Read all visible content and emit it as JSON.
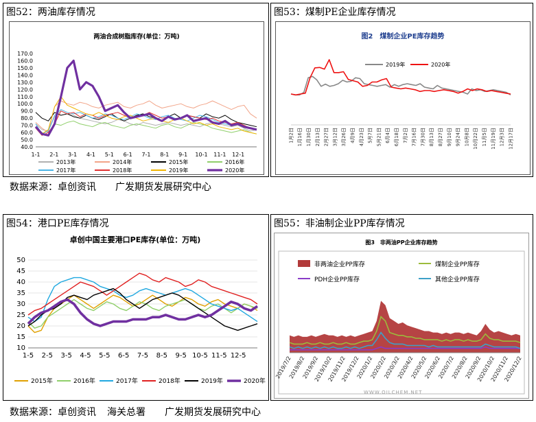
{
  "panels": {
    "p52": {
      "title": "图52：两油库存情况"
    },
    "p53": {
      "title": "图53：煤制PE企业库存情况"
    },
    "p54": {
      "title": "图54：港口PE库存情况"
    },
    "p55": {
      "title": "图55：非油制企业PP库存情况"
    }
  },
  "sources": {
    "row1": [
      "数据来源：卓创资讯",
      "广发期货发展研究中心"
    ],
    "row2": [
      "数据来源：卓创资讯",
      "海关总署",
      "广发期货发展研究中心"
    ]
  },
  "watermark": "WWW.OILCHEM.NET",
  "chart_data": [
    {
      "id": "c52",
      "type": "line",
      "title": "两油合成树脂库存(单位：万吨)",
      "x_ticks": [
        "1-1",
        "2-1",
        "3-1",
        "4-1",
        "5-1",
        "6-1",
        "7-1",
        "8-1",
        "9-1",
        "10-1",
        "11-1",
        "12-1"
      ],
      "ylim": [
        40,
        170
      ],
      "y_ticks": [
        "40.0",
        "50.0",
        "60.0",
        "70.0",
        "80.0",
        "90.0",
        "100.0",
        "110.0",
        "120.0",
        "130.0",
        "140.0",
        "150.0",
        "160.0",
        "170.0"
      ],
      "legend": "bottom",
      "series": [
        {
          "name": "2013年",
          "color": "#b0b0b0",
          "values": [
            72,
            64,
            62,
            82,
            90,
            86,
            84,
            80,
            78,
            76,
            74,
            72,
            74,
            78,
            76,
            72,
            70,
            74,
            72,
            70,
            72,
            74,
            72,
            70,
            72,
            70,
            68,
            72,
            74,
            72,
            70,
            68,
            70,
            66,
            62,
            64
          ]
        },
        {
          "name": "2014年",
          "color": "#f2a488",
          "values": [
            74,
            66,
            60,
            96,
            104,
            100,
            98,
            102,
            100,
            96,
            94,
            98,
            100,
            102,
            96,
            94,
            98,
            100,
            104,
            98,
            94,
            96,
            98,
            100,
            96,
            94,
            98,
            100,
            104,
            100,
            96,
            92,
            96,
            98,
            86,
            80
          ]
        },
        {
          "name": "2015年",
          "color": "#000000",
          "values": [
            88,
            80,
            76,
            88,
            84,
            86,
            82,
            80,
            84,
            80,
            78,
            82,
            86,
            80,
            76,
            80,
            84,
            86,
            82,
            80,
            76,
            82,
            86,
            80,
            84,
            82,
            80,
            86,
            82,
            80,
            84,
            78,
            74,
            72,
            70,
            68
          ]
        },
        {
          "name": "2016年",
          "color": "#8fcf6a",
          "values": [
            68,
            60,
            55,
            72,
            70,
            74,
            76,
            72,
            70,
            68,
            72,
            74,
            70,
            68,
            66,
            70,
            72,
            70,
            68,
            66,
            70,
            72,
            68,
            66,
            70,
            74,
            72,
            70,
            66,
            64,
            62,
            60,
            62,
            64,
            60,
            58
          ]
        },
        {
          "name": "2017年",
          "color": "#4ab4e6",
          "values": [
            72,
            58,
            62,
            84,
            92,
            88,
            86,
            88,
            84,
            80,
            82,
            86,
            84,
            80,
            78,
            82,
            86,
            84,
            80,
            78,
            82,
            84,
            80,
            78,
            76,
            80,
            84,
            82,
            78,
            74,
            72,
            70,
            72,
            68,
            66,
            64
          ]
        },
        {
          "name": "2018年",
          "color": "#e03030",
          "values": [
            66,
            56,
            60,
            72,
            90,
            86,
            88,
            82,
            86,
            84,
            80,
            84,
            86,
            88,
            84,
            80,
            82,
            84,
            88,
            84,
            80,
            82,
            78,
            80,
            84,
            82,
            80,
            78,
            80,
            76,
            74,
            72,
            74,
            70,
            66,
            64
          ]
        },
        {
          "name": "2019年",
          "color": "#f0b400",
          "values": [
            66,
            58,
            64,
            96,
            110,
            98,
            94,
            90,
            86,
            84,
            88,
            84,
            80,
            78,
            82,
            84,
            80,
            76,
            78,
            80,
            76,
            74,
            78,
            80,
            76,
            72,
            74,
            70,
            72,
            68,
            66,
            64,
            66,
            62,
            60,
            58
          ]
        },
        {
          "name": "2020年",
          "color": "#7030a0",
          "bold": true,
          "values": [
            68,
            58,
            56,
            72,
            110,
            150,
            160,
            120,
            130,
            125,
            110,
            90,
            94,
            98,
            88,
            80,
            82,
            84,
            86,
            80,
            76,
            82,
            78,
            80,
            84,
            76,
            78,
            80,
            74,
            72,
            76,
            70,
            72,
            68,
            66,
            64
          ]
        }
      ]
    },
    {
      "id": "c53",
      "type": "line",
      "title": "图2　煤制企业PE库存趋势",
      "x_ticks": [
        "1月2日",
        "1月16日",
        "1月30日",
        "2月13日",
        "2月27日",
        "3月12日",
        "3月26日",
        "4月9日",
        "4月23日",
        "5月7日",
        "5月21日",
        "6月4日",
        "6月18日",
        "7月2日",
        "7月16日",
        "7月30日",
        "8月13日",
        "8月27日",
        "9月10日",
        "9月24日",
        "10月8日",
        "10月22日",
        "11月5日",
        "11月19日",
        "12月3日",
        "12月17日"
      ],
      "ylim": [
        0,
        160
      ],
      "legend": "top",
      "series": [
        {
          "name": "2019年",
          "color": "#888888",
          "values": [
            72,
            70,
            70,
            76,
            110,
            113,
            105,
            90,
            95,
            90,
            92,
            96,
            104,
            100,
            102,
            110,
            108,
            96,
            94,
            92,
            90,
            92,
            94,
            88,
            94,
            90,
            94,
            96,
            94,
            92,
            96,
            88,
            86,
            84,
            92,
            86,
            84,
            82,
            80,
            78,
            76,
            72,
            84,
            80,
            82,
            78,
            80,
            82,
            80,
            78,
            76,
            70
          ]
        },
        {
          "name": "2020年",
          "color": "#ee1111",
          "values": [
            72,
            70,
            72,
            74,
            110,
            133,
            134,
            130,
            152,
            122,
            122,
            124,
            106,
            103,
            100,
            90,
            92,
            100,
            100,
            105,
            108,
            88,
            86,
            84,
            86,
            84,
            82,
            78,
            80,
            80,
            78,
            80,
            82,
            80,
            78,
            74,
            78,
            84,
            80,
            84,
            82,
            78,
            80,
            78,
            76,
            74,
            72
          ]
        }
      ]
    },
    {
      "id": "c54",
      "type": "line",
      "title": "卓创中国主要港口PE库存(单位：万吨)",
      "x_ticks": [
        "1-5",
        "2-5",
        "3-5",
        "4-5",
        "5-5",
        "6-5",
        "7-5",
        "8-5",
        "9-5",
        "10-5",
        "11-5",
        "12-5"
      ],
      "ylim": [
        10,
        50
      ],
      "y_ticks": [
        "10",
        "15",
        "20",
        "25",
        "30",
        "35",
        "40",
        "45",
        "50"
      ],
      "legend": "bottom",
      "series": [
        {
          "name": "2015年",
          "color": "#e0a000",
          "values": [
            20,
            17,
            18,
            24,
            28,
            30,
            32,
            34,
            32,
            30,
            28,
            30,
            32,
            34,
            33,
            31,
            29,
            30,
            32,
            34,
            32,
            30,
            29,
            31,
            33,
            32,
            30,
            29,
            31,
            32,
            30,
            29,
            28,
            30,
            29,
            27
          ]
        },
        {
          "name": "2016年",
          "color": "#8fcf6a",
          "values": [
            22,
            19,
            20,
            24,
            26,
            28,
            30,
            32,
            30,
            28,
            27,
            29,
            31,
            30,
            28,
            27,
            29,
            31,
            30,
            28,
            27,
            29,
            30,
            31,
            32,
            30,
            28,
            27,
            29,
            30,
            28,
            26,
            28,
            30,
            29,
            28
          ]
        },
        {
          "name": "2017年",
          "color": "#1fa8e0",
          "values": [
            24,
            22,
            24,
            32,
            38,
            40,
            41,
            42,
            42,
            41,
            40,
            38,
            37,
            36,
            34,
            33,
            34,
            36,
            37,
            36,
            35,
            34,
            35,
            36,
            37,
            36,
            34,
            32,
            30,
            29,
            28,
            27,
            28,
            26,
            24,
            22
          ]
        },
        {
          "name": "2018年",
          "color": "#e02020",
          "values": [
            25,
            27,
            28,
            30,
            32,
            34,
            36,
            38,
            40,
            39,
            38,
            36,
            34,
            36,
            38,
            40,
            42,
            44,
            43,
            41,
            40,
            42,
            41,
            40,
            38,
            39,
            41,
            40,
            38,
            37,
            36,
            35,
            34,
            33,
            32,
            30
          ]
        },
        {
          "name": "2019年",
          "color": "#000000",
          "values": [
            20,
            22,
            25,
            27,
            28,
            30,
            33,
            34,
            33,
            32,
            34,
            35,
            36,
            37,
            35,
            32,
            30,
            28,
            30,
            32,
            33,
            34,
            35,
            34,
            32,
            30,
            28,
            26,
            24,
            22,
            20,
            19,
            18,
            19,
            20,
            21
          ]
        },
        {
          "name": "2020年",
          "color": "#7030a0",
          "bold": true,
          "values": [
            21,
            24,
            26,
            27,
            29,
            31,
            32,
            30,
            26,
            23,
            21,
            20,
            21,
            22,
            22,
            22,
            23,
            23,
            23,
            24,
            24,
            25,
            24,
            23,
            23,
            24,
            25,
            24,
            25,
            27,
            29,
            31,
            30,
            28,
            27,
            29
          ]
        }
      ]
    },
    {
      "id": "c55",
      "type": "area",
      "title": "图3　非两油PP企业库存趋势",
      "x_ticks": [
        "2019/7/2",
        "2019/8/2",
        "2019/9/2",
        "2019/10/2",
        "2019/11/2",
        "2019/12/2",
        "2020/1/2",
        "2020/2/2",
        "2020/3/2",
        "2020/4/2",
        "2020/5/2",
        "2020/6/2",
        "2020/7/2",
        "2020/8/2",
        "2020/9/2",
        "2020/10/2",
        "2020/11/2",
        "2020/12/2"
      ],
      "ylim": [
        0,
        40
      ],
      "legend": "top",
      "series": [
        {
          "name": "非两油企业PP库存",
          "color": "#b23a3a",
          "values": [
            12,
            11,
            12,
            11,
            11,
            12,
            11,
            12,
            13,
            12,
            12,
            11,
            12,
            11,
            12,
            11,
            12,
            13,
            14,
            15,
            22,
            36,
            33,
            24,
            22,
            20,
            21,
            19,
            18,
            17,
            16,
            15,
            15,
            14,
            14,
            13,
            14,
            13,
            14,
            14,
            13,
            14,
            13,
            12,
            15,
            20,
            16,
            14,
            15,
            14,
            13,
            12,
            13,
            12
          ]
        },
        {
          "name": "煤制企业PP库存",
          "color": "#9cbb3c",
          "values": [
            7,
            6,
            6,
            6,
            7,
            6,
            6,
            7,
            6,
            6,
            7,
            6,
            6,
            7,
            6,
            6,
            7,
            8,
            8,
            9,
            15,
            25,
            22,
            14,
            13,
            12,
            12,
            11,
            11,
            10,
            10,
            9,
            9,
            9,
            9,
            8,
            9,
            8,
            9,
            9,
            8,
            9,
            8,
            8,
            9,
            13,
            10,
            9,
            9,
            8,
            8,
            8,
            8,
            7
          ]
        },
        {
          "name": "PDH企业PP库存",
          "color": "#8a3cc8",
          "values": [
            2,
            2,
            2,
            2,
            2,
            2,
            2,
            2,
            2,
            2,
            2,
            2,
            2,
            2,
            2,
            2,
            2,
            2,
            2,
            2,
            3,
            4,
            3,
            3,
            3,
            3,
            3,
            3,
            3,
            3,
            3,
            3,
            3,
            3,
            3,
            3,
            3,
            3,
            3,
            3,
            3,
            3,
            3,
            3,
            3,
            4,
            3,
            3,
            3,
            3,
            3,
            3,
            3,
            3
          ]
        },
        {
          "name": "其他企业PP库存",
          "color": "#3da0c8",
          "values": [
            4,
            3,
            4,
            3,
            4,
            3,
            4,
            3,
            4,
            3,
            4,
            3,
            3,
            4,
            3,
            4,
            3,
            4,
            5,
            5,
            9,
            14,
            10,
            7,
            6,
            6,
            6,
            5,
            5,
            5,
            5,
            5,
            4,
            5,
            4,
            4,
            4,
            4,
            4,
            4,
            4,
            4,
            4,
            4,
            4,
            6,
            5,
            4,
            4,
            4,
            4,
            4,
            4,
            3
          ]
        }
      ]
    }
  ]
}
